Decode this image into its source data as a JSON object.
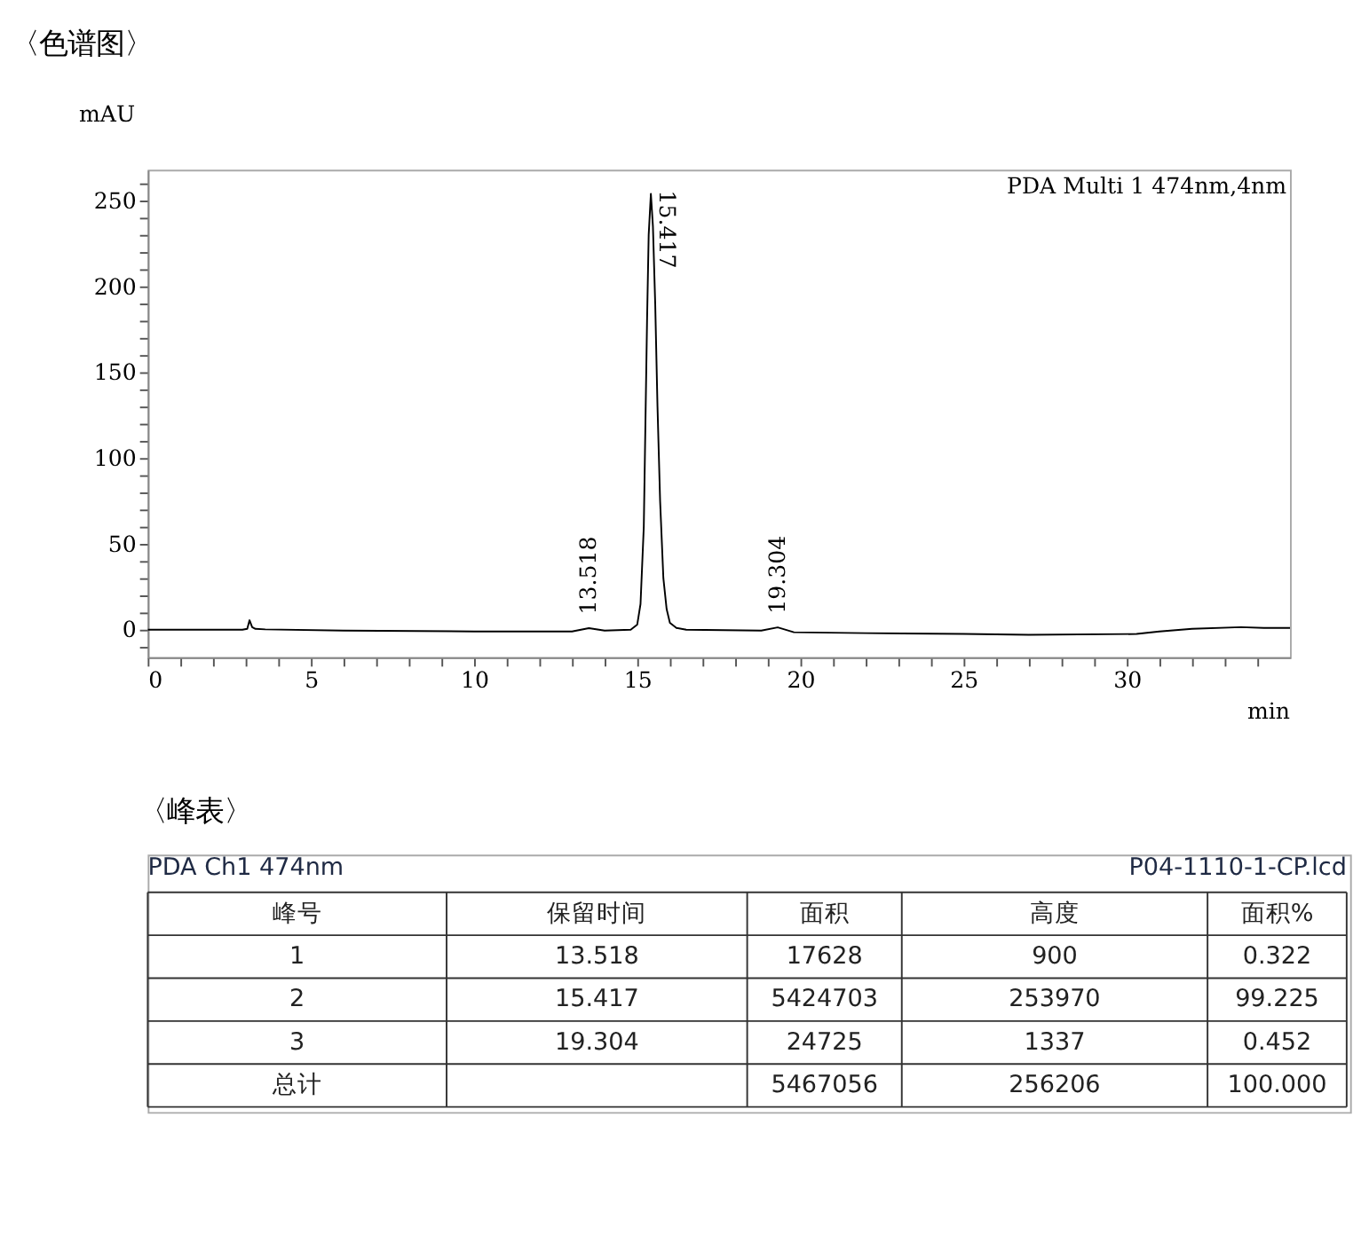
{
  "chart_data": [
    {
      "type": "line",
      "title": "〈色谱图〉",
      "ylabel": "mAU",
      "xlabel": "min",
      "x": [
        0,
        2.9,
        3.05,
        3.12,
        3.2,
        3.3,
        3.6,
        6,
        10,
        13.0,
        13.518,
        14.0,
        14.8,
        15.0,
        15.1,
        15.2,
        15.3,
        15.35,
        15.417,
        15.48,
        15.55,
        15.62,
        15.7,
        15.8,
        15.9,
        16.0,
        16.2,
        16.5,
        18.8,
        19.304,
        19.8,
        22,
        25,
        27,
        30.3,
        31,
        32,
        33.5,
        34.2,
        35
      ],
      "series": [
        {
          "color": "#000000",
          "values": [
            0,
            0,
            0.5,
            5.5,
            1.5,
            0.5,
            0.2,
            -0.5,
            -1,
            -1,
            0.9,
            -0.5,
            0,
            3,
            15,
            60,
            180,
            230,
            253.97,
            235,
            190,
            130,
            75,
            30,
            12,
            4,
            1,
            0,
            -0.5,
            1.337,
            -1.5,
            -2,
            -2.5,
            -3,
            -2.5,
            -1,
            0.5,
            1.5,
            1,
            1
          ]
        }
      ],
      "xlim": [
        0,
        35
      ],
      "ylim": [
        -16,
        268
      ],
      "xticks": [
        0,
        {
          "value": 1,
          "label": null
        },
        {
          "value": 2,
          "label": null
        },
        {
          "value": 3,
          "label": null
        },
        {
          "value": 4,
          "label": null
        },
        5,
        {
          "value": 6,
          "label": null
        },
        {
          "value": 7,
          "label": null
        },
        {
          "value": 8,
          "label": null
        },
        {
          "value": 9,
          "label": null
        },
        10,
        {
          "value": 11,
          "label": null
        },
        {
          "value": 12,
          "label": null
        },
        {
          "value": 13,
          "label": null
        },
        {
          "value": 14,
          "label": null
        },
        15,
        {
          "value": 16,
          "label": null
        },
        {
          "value": 17,
          "label": null
        },
        {
          "value": 18,
          "label": null
        },
        {
          "value": 19,
          "label": null
        },
        20,
        {
          "value": 21,
          "label": null
        },
        {
          "value": 22,
          "label": null
        },
        {
          "value": 23,
          "label": null
        },
        {
          "value": 24,
          "label": null
        },
        25,
        {
          "value": 26,
          "label": null
        },
        {
          "value": 27,
          "label": null
        },
        {
          "value": 28,
          "label": null
        },
        {
          "value": 29,
          "label": null
        },
        30,
        {
          "value": 31,
          "label": null
        },
        {
          "value": 32,
          "label": null
        },
        {
          "value": 33,
          "label": null
        },
        {
          "value": 34,
          "label": null
        }
      ],
      "yticks": [
        {
          "value": -10,
          "label": null
        },
        0,
        {
          "value": 10,
          "label": null
        },
        {
          "value": 20,
          "label": null
        },
        {
          "value": 30,
          "label": null
        },
        {
          "value": 40,
          "label": null
        },
        50,
        {
          "value": 60,
          "label": null
        },
        {
          "value": 70,
          "label": null
        },
        {
          "value": 80,
          "label": null
        },
        {
          "value": 90,
          "label": null
        },
        100,
        {
          "value": 110,
          "label": null
        },
        {
          "value": 120,
          "label": null
        },
        {
          "value": 130,
          "label": null
        },
        {
          "value": 140,
          "label": null
        },
        150,
        {
          "value": 160,
          "label": null
        },
        {
          "value": 170,
          "label": null
        },
        {
          "value": 180,
          "label": null
        },
        {
          "value": 190,
          "label": null
        },
        200,
        {
          "value": 210,
          "label": null
        },
        {
          "value": 220,
          "label": null
        },
        {
          "value": 230,
          "label": null
        },
        {
          "value": 240,
          "label": null
        },
        250,
        {
          "value": 260,
          "label": null
        }
      ],
      "marker": "none",
      "line_style": "solid",
      "annotations": [
        "PDA Multi 1 474nm,4nm",
        {
          "text": "13.518",
          "x": 13.518,
          "y": 0.9
        },
        {
          "text": "15.417",
          "x": 15.417,
          "y": 253.97
        },
        {
          "text": "19.304",
          "x": 19.304,
          "y": 1.337
        }
      ]
    },
    {
      "type": "other",
      "title": "〈峰表〉",
      "annotations": [
        "PDA Ch1 474nm",
        "P04-1110-1-CP.lcd",
        "峰号",
        "保留时间",
        "面积",
        "高度",
        "面积%",
        "1",
        "13.518",
        "17628",
        "900",
        "0.322",
        "2",
        "15.417",
        "5424703",
        "253970",
        "99.225",
        "3",
        "19.304",
        "24725",
        "1337",
        "0.452",
        "总计",
        null,
        "5467056",
        "256206",
        "100.000"
      ]
    }
  ]
}
